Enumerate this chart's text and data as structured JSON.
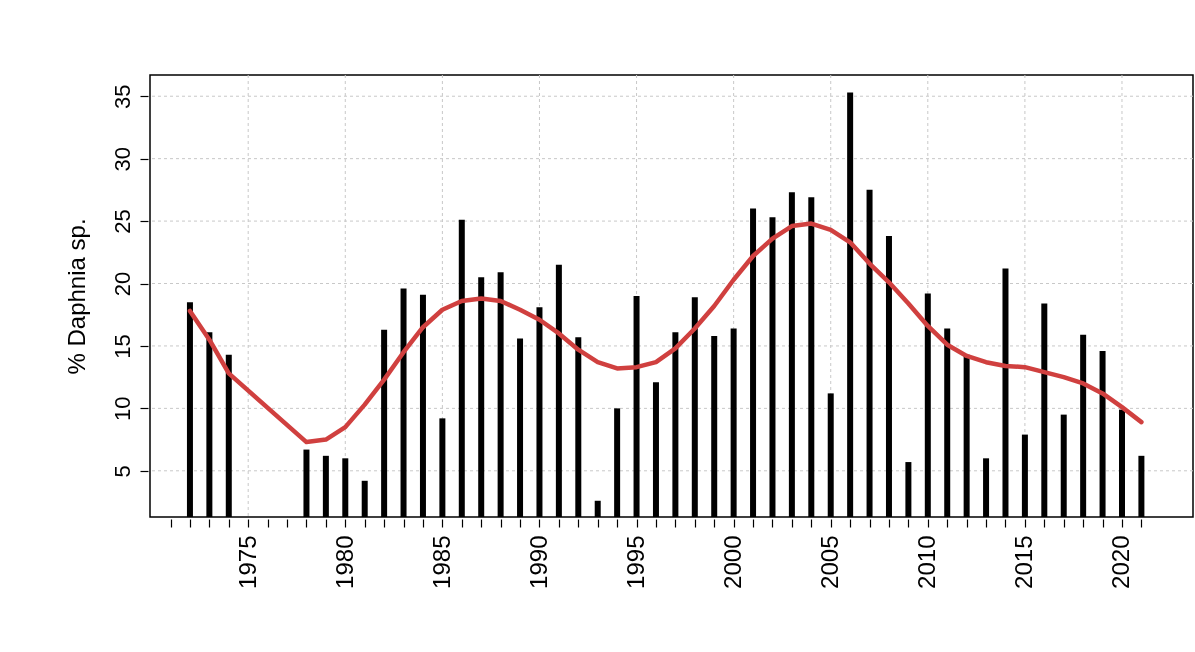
{
  "chart_data": {
    "type": "bar",
    "ylabel": "% Daphnia sp.",
    "x": [
      1972,
      1973,
      1974,
      1975,
      1976,
      1977,
      1978,
      1979,
      1980,
      1981,
      1982,
      1983,
      1984,
      1985,
      1986,
      1987,
      1988,
      1989,
      1990,
      1991,
      1992,
      1993,
      1994,
      1995,
      1996,
      1997,
      1998,
      1999,
      2000,
      2001,
      2002,
      2003,
      2004,
      2005,
      2006,
      2007,
      2008,
      2009,
      2010,
      2011,
      2012,
      2013,
      2014,
      2015,
      2016,
      2017,
      2018,
      2019,
      2020,
      2021
    ],
    "series": [
      {
        "color": "#000000",
        "values": [
          18.5,
          16.1,
          14.3,
          null,
          null,
          null,
          6.7,
          6.2,
          6.0,
          4.2,
          16.3,
          19.6,
          19.1,
          9.2,
          25.1,
          20.5,
          20.9,
          15.6,
          18.1,
          21.5,
          15.7,
          2.6,
          10.0,
          19.0,
          12.1,
          16.1,
          18.9,
          15.8,
          16.4,
          26.0,
          25.3,
          27.3,
          26.9,
          11.2,
          35.3,
          27.5,
          23.8,
          5.7,
          19.2,
          16.4,
          14.3,
          6.0,
          21.2,
          7.9,
          18.4,
          9.5,
          15.9,
          14.6,
          9.9,
          6.2
        ]
      },
      {
        "type": "line",
        "color": "#d0403f",
        "x": [
          1972,
          1973,
          1974,
          1978,
          1979,
          1980,
          1981,
          1982,
          1983,
          1984,
          1985,
          1986,
          1987,
          1988,
          1989,
          1990,
          1991,
          1992,
          1993,
          1994,
          1995,
          1996,
          1997,
          1998,
          1999,
          2000,
          2001,
          2002,
          2003,
          2004,
          2005,
          2006,
          2007,
          2008,
          2009,
          2010,
          2011,
          2012,
          2013,
          2014,
          2015,
          2016,
          2017,
          2018,
          2019,
          2020,
          2021
        ],
        "values": [
          17.8,
          15.5,
          12.8,
          7.3,
          7.5,
          8.5,
          10.3,
          12.3,
          14.5,
          16.5,
          17.9,
          18.6,
          18.8,
          18.6,
          17.9,
          17.1,
          16.0,
          14.7,
          13.7,
          13.2,
          13.3,
          13.7,
          14.8,
          16.4,
          18.2,
          20.3,
          22.2,
          23.6,
          24.6,
          24.8,
          24.3,
          23.3,
          21.6,
          20.1,
          18.4,
          16.6,
          15.1,
          14.2,
          13.7,
          13.4,
          13.3,
          12.9,
          12.5,
          12.0,
          11.2,
          10.1,
          8.9
        ]
      }
    ],
    "xlim": [
      1970.2,
      2023.4
    ],
    "xticks": [
      {
        "value": 1971,
        "label": null
      },
      {
        "value": 1972,
        "label": null
      },
      {
        "value": 1973,
        "label": null
      },
      {
        "value": 1974,
        "label": null
      },
      1975,
      {
        "value": 1976,
        "label": null
      },
      {
        "value": 1977,
        "label": null
      },
      {
        "value": 1978,
        "label": null
      },
      {
        "value": 1979,
        "label": null
      },
      1980,
      {
        "value": 1981,
        "label": null
      },
      {
        "value": 1982,
        "label": null
      },
      {
        "value": 1983,
        "label": null
      },
      {
        "value": 1984,
        "label": null
      },
      1985,
      {
        "value": 1986,
        "label": null
      },
      {
        "value": 1987,
        "label": null
      },
      {
        "value": 1988,
        "label": null
      },
      {
        "value": 1989,
        "label": null
      },
      1990,
      {
        "value": 1991,
        "label": null
      },
      {
        "value": 1992,
        "label": null
      },
      {
        "value": 1993,
        "label": null
      },
      {
        "value": 1994,
        "label": null
      },
      1995,
      {
        "value": 1996,
        "label": null
      },
      {
        "value": 1997,
        "label": null
      },
      {
        "value": 1998,
        "label": null
      },
      {
        "value": 1999,
        "label": null
      },
      2000,
      {
        "value": 2001,
        "label": null
      },
      {
        "value": 2002,
        "label": null
      },
      {
        "value": 2003,
        "label": null
      },
      {
        "value": 2004,
        "label": null
      },
      2005,
      {
        "value": 2006,
        "label": null
      },
      {
        "value": 2007,
        "label": null
      },
      {
        "value": 2008,
        "label": null
      },
      {
        "value": 2009,
        "label": null
      },
      2010,
      {
        "value": 2011,
        "label": null
      },
      {
        "value": 2012,
        "label": null
      },
      {
        "value": 2013,
        "label": null
      },
      {
        "value": 2014,
        "label": null
      },
      2015,
      {
        "value": 2016,
        "label": null
      },
      {
        "value": 2017,
        "label": null
      },
      {
        "value": 2018,
        "label": null
      },
      {
        "value": 2019,
        "label": null
      },
      2020,
      {
        "value": 2021,
        "label": null
      }
    ],
    "ylim": [
      1.3,
      36.7
    ],
    "yticks": [
      5,
      10,
      15,
      20,
      25,
      30,
      35
    ],
    "grid": true
  }
}
